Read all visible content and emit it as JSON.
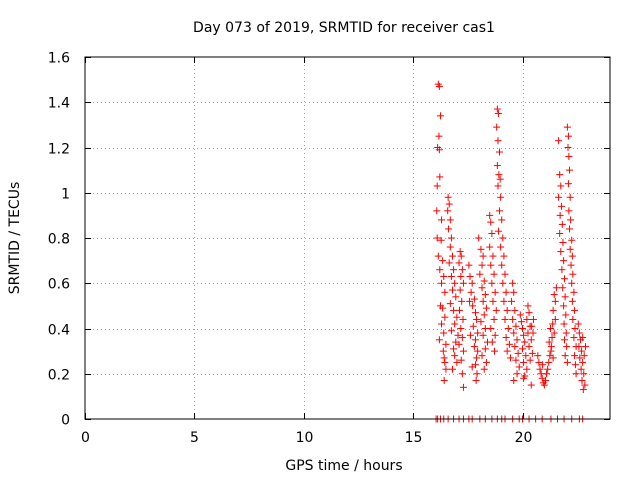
{
  "chart_data": {
    "type": "scatter",
    "title": "Day 073 of 2019, SRMTID for receiver cas1",
    "xlabel": "GPS time / hours",
    "ylabel": "SRMTID / TECUs",
    "xlim": [
      0,
      24
    ],
    "ylim": [
      0,
      1.6
    ],
    "xticks": [
      0,
      5,
      10,
      15,
      20
    ],
    "yticks": [
      0,
      0.2,
      0.4,
      0.6,
      0.8,
      1,
      1.2,
      1.4,
      1.6
    ],
    "xtick_labels": [
      "0",
      "5",
      "10",
      "15",
      "20"
    ],
    "ytick_labels": [
      "0",
      "0.2",
      "0.4",
      "0.6",
      "0.8",
      "1",
      "1.2",
      "1.4",
      "1.6"
    ],
    "grid": true,
    "marker": "+",
    "color": "#ff0000",
    "series": [
      {
        "name": "SRMTID",
        "points": [
          [
            16.05,
            0
          ],
          [
            16.12,
            0
          ],
          [
            16.25,
            0
          ],
          [
            16.4,
            0
          ],
          [
            16.6,
            0
          ],
          [
            16.85,
            0
          ],
          [
            17.1,
            0
          ],
          [
            17.3,
            0
          ],
          [
            17.55,
            0
          ],
          [
            17.7,
            0
          ],
          [
            18.05,
            0
          ],
          [
            18.3,
            0
          ],
          [
            18.6,
            0
          ],
          [
            18.85,
            0
          ],
          [
            19.05,
            0
          ],
          [
            19.2,
            0
          ],
          [
            19.55,
            0
          ],
          [
            19.85,
            0
          ],
          [
            20.0,
            0
          ],
          [
            20.3,
            0
          ],
          [
            20.6,
            0
          ],
          [
            20.9,
            0
          ],
          [
            21.3,
            0
          ],
          [
            21.6,
            0
          ],
          [
            21.9,
            0
          ],
          [
            22.25,
            0
          ],
          [
            22.6,
            0
          ],
          [
            22.75,
            0
          ],
          [
            16.15,
            1.48
          ],
          [
            16.2,
            1.47
          ],
          [
            16.25,
            1.34
          ],
          [
            16.18,
            1.25
          ],
          [
            16.12,
            1.2
          ],
          [
            16.2,
            1.19
          ],
          [
            16.22,
            1.07
          ],
          [
            16.1,
            1.03
          ],
          [
            16.08,
            0.92
          ],
          [
            16.3,
            0.88
          ],
          [
            16.1,
            0.8
          ],
          [
            16.28,
            0.79
          ],
          [
            16.15,
            0.72
          ],
          [
            16.35,
            0.7
          ],
          [
            16.22,
            0.66
          ],
          [
            16.4,
            0.63
          ],
          [
            16.3,
            0.6
          ],
          [
            16.45,
            0.56
          ],
          [
            16.25,
            0.5
          ],
          [
            16.35,
            0.49
          ],
          [
            16.45,
            0.45
          ],
          [
            16.3,
            0.42
          ],
          [
            16.4,
            0.38
          ],
          [
            16.2,
            0.35
          ],
          [
            16.5,
            0.33
          ],
          [
            16.38,
            0.3
          ],
          [
            16.42,
            0.27
          ],
          [
            16.45,
            0.25
          ],
          [
            16.5,
            0.22
          ],
          [
            16.42,
            0.17
          ],
          [
            16.6,
            0.98
          ],
          [
            16.65,
            0.95
          ],
          [
            16.58,
            0.92
          ],
          [
            16.7,
            0.88
          ],
          [
            16.62,
            0.84
          ],
          [
            16.75,
            0.8
          ],
          [
            16.7,
            0.76
          ],
          [
            16.8,
            0.72
          ],
          [
            16.65,
            0.69
          ],
          [
            16.85,
            0.66
          ],
          [
            16.75,
            0.63
          ],
          [
            16.9,
            0.6
          ],
          [
            16.8,
            0.57
          ],
          [
            16.95,
            0.54
          ],
          [
            16.7,
            0.51
          ],
          [
            16.85,
            0.48
          ],
          [
            17.0,
            0.45
          ],
          [
            16.9,
            0.42
          ],
          [
            16.75,
            0.39
          ],
          [
            17.05,
            0.37
          ],
          [
            16.95,
            0.34
          ],
          [
            16.85,
            0.31
          ],
          [
            16.9,
            0.28
          ],
          [
            17.0,
            0.25
          ],
          [
            16.8,
            0.22
          ],
          [
            17.15,
            0.74
          ],
          [
            17.2,
            0.72
          ],
          [
            17.1,
            0.69
          ],
          [
            17.25,
            0.66
          ],
          [
            17.18,
            0.63
          ],
          [
            17.3,
            0.6
          ],
          [
            17.15,
            0.57
          ],
          [
            17.22,
            0.52
          ],
          [
            17.12,
            0.48
          ],
          [
            17.28,
            0.44
          ],
          [
            17.18,
            0.4
          ],
          [
            17.25,
            0.36
          ],
          [
            17.1,
            0.33
          ],
          [
            17.3,
            0.3
          ],
          [
            17.2,
            0.26
          ],
          [
            17.25,
            0.2
          ],
          [
            17.3,
            0.14
          ],
          [
            17.55,
            0.68
          ],
          [
            17.6,
            0.63
          ],
          [
            17.7,
            0.6
          ],
          [
            17.65,
            0.56
          ],
          [
            17.8,
            0.53
          ],
          [
            17.72,
            0.5
          ],
          [
            17.85,
            0.47
          ],
          [
            17.9,
            0.44
          ],
          [
            17.75,
            0.41
          ],
          [
            17.95,
            0.38
          ],
          [
            17.85,
            0.35
          ],
          [
            17.8,
            0.32
          ],
          [
            17.95,
            0.3
          ],
          [
            17.9,
            0.27
          ],
          [
            17.85,
            0.24
          ],
          [
            17.92,
            0.2
          ],
          [
            17.88,
            0.17
          ],
          [
            17.7,
            0.23
          ],
          [
            17.62,
            0.37
          ],
          [
            17.58,
            0.52
          ],
          [
            18.0,
            0.8
          ],
          [
            18.1,
            0.75
          ],
          [
            18.2,
            0.72
          ],
          [
            18.15,
            0.68
          ],
          [
            18.05,
            0.64
          ],
          [
            18.25,
            0.61
          ],
          [
            18.15,
            0.58
          ],
          [
            18.3,
            0.55
          ],
          [
            18.2,
            0.52
          ],
          [
            18.35,
            0.49
          ],
          [
            18.25,
            0.46
          ],
          [
            18.1,
            0.43
          ],
          [
            18.3,
            0.4
          ],
          [
            18.2,
            0.37
          ],
          [
            18.4,
            0.34
          ],
          [
            18.3,
            0.31
          ],
          [
            18.15,
            0.28
          ],
          [
            18.35,
            0.25
          ],
          [
            18.25,
            0.22
          ],
          [
            18.5,
            0.9
          ],
          [
            18.55,
            0.87
          ],
          [
            18.6,
            0.82
          ],
          [
            18.5,
            0.76
          ],
          [
            18.65,
            0.72
          ],
          [
            18.55,
            0.68
          ],
          [
            18.7,
            0.64
          ],
          [
            18.6,
            0.6
          ],
          [
            18.75,
            0.56
          ],
          [
            18.65,
            0.52
          ],
          [
            18.8,
            0.48
          ],
          [
            18.7,
            0.44
          ],
          [
            18.55,
            0.4
          ],
          [
            18.75,
            0.37
          ],
          [
            18.62,
            0.34
          ],
          [
            18.72,
            0.3
          ],
          [
            18.85,
            1.37
          ],
          [
            18.9,
            1.35
          ],
          [
            18.82,
            1.29
          ],
          [
            18.88,
            1.23
          ],
          [
            18.95,
            1.18
          ],
          [
            18.85,
            1.12
          ],
          [
            18.92,
            1.08
          ],
          [
            18.98,
            1.06
          ],
          [
            18.88,
            1.03
          ],
          [
            19.0,
            0.98
          ],
          [
            18.95,
            0.92
          ],
          [
            19.05,
            0.88
          ],
          [
            18.9,
            0.83
          ],
          [
            19.1,
            0.8
          ],
          [
            19.0,
            0.76
          ],
          [
            19.15,
            0.72
          ],
          [
            19.05,
            0.68
          ],
          [
            19.2,
            0.64
          ],
          [
            19.1,
            0.6
          ],
          [
            19.25,
            0.56
          ],
          [
            19.15,
            0.52
          ],
          [
            19.3,
            0.48
          ],
          [
            19.2,
            0.44
          ],
          [
            19.35,
            0.4
          ],
          [
            19.25,
            0.36
          ],
          [
            19.4,
            0.33
          ],
          [
            19.3,
            0.3
          ],
          [
            19.45,
            0.27
          ],
          [
            19.55,
            0.6
          ],
          [
            19.6,
            0.56
          ],
          [
            19.5,
            0.52
          ],
          [
            19.65,
            0.48
          ],
          [
            19.55,
            0.44
          ],
          [
            19.7,
            0.41
          ],
          [
            19.6,
            0.38
          ],
          [
            19.75,
            0.35
          ],
          [
            19.65,
            0.32
          ],
          [
            19.8,
            0.29
          ],
          [
            19.7,
            0.26
          ],
          [
            19.85,
            0.23
          ],
          [
            19.75,
            0.2
          ],
          [
            19.6,
            0.17
          ],
          [
            19.9,
            0.46
          ],
          [
            19.95,
            0.43
          ],
          [
            20.0,
            0.4
          ],
          [
            20.05,
            0.37
          ],
          [
            20.1,
            0.34
          ],
          [
            20.0,
            0.31
          ],
          [
            20.15,
            0.28
          ],
          [
            20.05,
            0.25
          ],
          [
            20.2,
            0.22
          ],
          [
            20.1,
            0.19
          ],
          [
            20.25,
            0.5
          ],
          [
            20.3,
            0.47
          ],
          [
            20.2,
            0.44
          ],
          [
            20.35,
            0.41
          ],
          [
            20.25,
            0.38
          ],
          [
            20.4,
            0.35
          ],
          [
            20.3,
            0.32
          ],
          [
            20.45,
            0.29
          ],
          [
            20.35,
            0.26
          ],
          [
            20.5,
            0.44
          ],
          [
            20.42,
            0.41
          ],
          [
            20.48,
            0.38
          ],
          [
            20.4,
            0.15
          ],
          [
            20.05,
            0.18
          ],
          [
            20.7,
            0.28
          ],
          [
            20.75,
            0.25
          ],
          [
            20.8,
            0.22
          ],
          [
            20.85,
            0.2
          ],
          [
            20.9,
            0.18
          ],
          [
            20.95,
            0.16
          ],
          [
            21.0,
            0.15
          ],
          [
            21.05,
            0.17
          ],
          [
            20.92,
            0.24
          ],
          [
            21.1,
            0.2
          ],
          [
            21.15,
            0.22
          ],
          [
            21.2,
            0.25
          ],
          [
            21.25,
            0.28
          ],
          [
            21.3,
            0.3
          ],
          [
            21.22,
            0.34
          ],
          [
            21.35,
            0.36
          ],
          [
            21.28,
            0.4
          ],
          [
            21.38,
            0.42
          ],
          [
            21.32,
            0.32
          ],
          [
            21.4,
            0.27
          ],
          [
            21.45,
            0.38
          ],
          [
            21.5,
            0.44
          ],
          [
            21.4,
            0.48
          ],
          [
            21.5,
            0.52
          ],
          [
            21.45,
            0.55
          ],
          [
            21.55,
            0.58
          ],
          [
            21.65,
            1.23
          ],
          [
            21.7,
            1.08
          ],
          [
            21.75,
            1.03
          ],
          [
            21.65,
            0.98
          ],
          [
            21.78,
            0.94
          ],
          [
            21.72,
            0.9
          ],
          [
            21.82,
            0.86
          ],
          [
            21.7,
            0.82
          ],
          [
            21.85,
            0.78
          ],
          [
            21.75,
            0.74
          ],
          [
            21.88,
            0.7
          ],
          [
            21.8,
            0.66
          ],
          [
            21.92,
            0.62
          ],
          [
            21.84,
            0.58
          ],
          [
            21.95,
            0.54
          ],
          [
            21.88,
            0.5
          ],
          [
            21.98,
            0.46
          ],
          [
            21.9,
            0.42
          ],
          [
            22.0,
            0.38
          ],
          [
            21.92,
            0.35
          ],
          [
            22.02,
            0.32
          ],
          [
            21.95,
            0.28
          ],
          [
            22.05,
            0.25
          ],
          [
            22.05,
            1.29
          ],
          [
            22.1,
            1.25
          ],
          [
            22.08,
            1.2
          ],
          [
            22.12,
            1.16
          ],
          [
            22.15,
            1.1
          ],
          [
            22.1,
            1.04
          ],
          [
            22.18,
            0.98
          ],
          [
            22.12,
            0.92
          ],
          [
            22.2,
            0.88
          ],
          [
            22.15,
            0.84
          ],
          [
            22.25,
            0.79
          ],
          [
            22.18,
            0.75
          ],
          [
            22.28,
            0.72
          ],
          [
            22.22,
            0.68
          ],
          [
            22.3,
            0.64
          ],
          [
            22.25,
            0.6
          ],
          [
            22.35,
            0.56
          ],
          [
            22.28,
            0.52
          ],
          [
            22.38,
            0.48
          ],
          [
            22.3,
            0.44
          ],
          [
            22.4,
            0.4
          ],
          [
            22.35,
            0.36
          ],
          [
            22.45,
            0.32
          ],
          [
            22.38,
            0.28
          ],
          [
            22.42,
            0.24
          ],
          [
            22.45,
            0.2
          ],
          [
            22.55,
            0.42
          ],
          [
            22.6,
            0.38
          ],
          [
            22.65,
            0.35
          ],
          [
            22.58,
            0.32
          ],
          [
            22.7,
            0.3
          ],
          [
            22.62,
            0.27
          ],
          [
            22.75,
            0.25
          ],
          [
            22.68,
            0.22
          ],
          [
            22.8,
            0.2
          ],
          [
            22.72,
            0.17
          ],
          [
            22.85,
            0.15
          ],
          [
            22.78,
            0.13
          ],
          [
            22.82,
            0.28
          ],
          [
            22.88,
            0.32
          ],
          [
            22.75,
            0.36
          ]
        ]
      }
    ]
  }
}
